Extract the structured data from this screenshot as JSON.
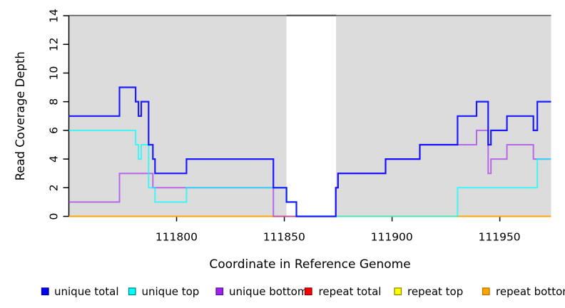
{
  "chart_data": {
    "type": "line",
    "step_style": "post",
    "title": "",
    "xlabel": "Coordinate in Reference Genome",
    "ylabel": "Read Coverage Depth",
    "xlim": [
      111750,
      111973.8
    ],
    "ylim": [
      0,
      14
    ],
    "x_ticks": [
      111800,
      111850,
      111900,
      111950
    ],
    "y_ticks": [
      0,
      2,
      4,
      6,
      8,
      10,
      12,
      14
    ],
    "grid": false,
    "legend_position": "bottom",
    "plot_bg_color": "#DCDCDC",
    "outer_bg_color": "#FFFFFF",
    "masked_region": {
      "x_start": 111851,
      "x_end": 111874,
      "color": "#FFFFFF"
    },
    "series": [
      {
        "name": "unique total",
        "color": "#0000FF",
        "steps": [
          [
            111750,
            7
          ],
          [
            111773.5,
            9
          ],
          [
            111781,
            8
          ],
          [
            111782.3,
            7
          ],
          [
            111783.6,
            8
          ],
          [
            111787,
            5
          ],
          [
            111789,
            4
          ],
          [
            111790,
            3
          ],
          [
            111804.6,
            4
          ],
          [
            111844.9,
            2
          ],
          [
            111851,
            1
          ],
          [
            111855.6,
            0
          ],
          [
            111873.9,
            2
          ],
          [
            111874.9,
            3
          ],
          [
            111897,
            4
          ],
          [
            111912.9,
            5
          ],
          [
            111930.4,
            7
          ],
          [
            111939.2,
            8
          ],
          [
            111944.6,
            5
          ],
          [
            111945.9,
            6
          ],
          [
            111953.3,
            7
          ],
          [
            111965.6,
            6
          ],
          [
            111967.4,
            8
          ]
        ]
      },
      {
        "name": "unique top",
        "color": "#00FFFF",
        "steps": [
          [
            111750,
            6
          ],
          [
            111781,
            5
          ],
          [
            111782.3,
            4
          ],
          [
            111783.6,
            5
          ],
          [
            111787,
            2
          ],
          [
            111790,
            1
          ],
          [
            111804.6,
            2
          ],
          [
            111851,
            1
          ],
          [
            111855.6,
            0
          ],
          [
            111930.4,
            2
          ],
          [
            111967.4,
            4
          ]
        ]
      },
      {
        "name": "unique bottom",
        "color": "#A020F0",
        "steps": [
          [
            111750,
            1
          ],
          [
            111773.5,
            3
          ],
          [
            111789,
            2
          ],
          [
            111844.9,
            0
          ],
          [
            111873.9,
            2
          ],
          [
            111874.9,
            3
          ],
          [
            111897,
            4
          ],
          [
            111912.9,
            5
          ],
          [
            111939.2,
            6
          ],
          [
            111944.6,
            3
          ],
          [
            111945.9,
            4
          ],
          [
            111953.3,
            5
          ],
          [
            111965.6,
            4
          ]
        ]
      },
      {
        "name": "repeat total",
        "color": "#FF0000",
        "steps": [
          [
            111750,
            0
          ]
        ]
      },
      {
        "name": "repeat top",
        "color": "#FFFF00",
        "steps": [
          [
            111750,
            0
          ]
        ]
      },
      {
        "name": "repeat bottom",
        "color": "#FFA500",
        "steps": [
          [
            111750,
            0
          ]
        ]
      }
    ]
  },
  "axes": {
    "x_tick_labels": [
      "111800",
      "111850",
      "111900",
      "111950"
    ],
    "y_tick_labels": [
      "0",
      "2",
      "4",
      "6",
      "8",
      "10",
      "12",
      "14"
    ]
  },
  "legend": {
    "items": [
      {
        "label": "unique total",
        "color": "#0000FF",
        "border": "#00008B"
      },
      {
        "label": "unique top",
        "color": "#00FFFF",
        "border": "#008B8B"
      },
      {
        "label": "unique bottom",
        "color": "#A020F0",
        "border": "#551A8B"
      },
      {
        "label": "repeat total",
        "color": "#FF0000",
        "border": "#8B0000"
      },
      {
        "label": "repeat top",
        "color": "#FFFF00",
        "border": "#8B8B00"
      },
      {
        "label": "repeat bottom",
        "color": "#FFA500",
        "border": "#B87400"
      }
    ]
  }
}
